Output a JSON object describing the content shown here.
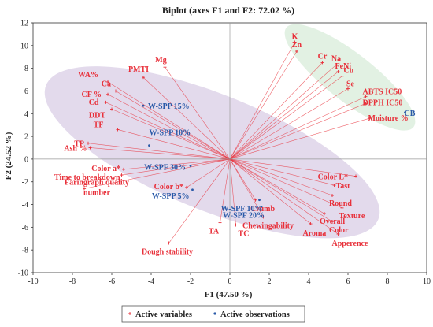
{
  "chart_data": {
    "type": "scatter",
    "title": "Biplot  (axes F1 and F2: 72.02 %)",
    "xlabel": "F1 (47.50 %)",
    "ylabel": "F2 (24.52 %)",
    "xlim": [
      -10,
      10
    ],
    "ylim": [
      -10,
      12
    ],
    "xticks": [
      -10,
      -8,
      -6,
      -4,
      -2,
      0,
      2,
      4,
      6,
      8,
      10
    ],
    "yticks": [
      -10,
      -8,
      -6,
      -4,
      -2,
      0,
      2,
      4,
      6,
      8,
      10,
      12
    ],
    "grid": false,
    "legend_position": "bottom",
    "colors": {
      "variables": "#e8303a",
      "observations": "#2a5aa8",
      "ellipse_purple_fill": "#d9cde6",
      "ellipse_green_fill": "#d8ecd9",
      "origin_lines": "#9a9a9a"
    },
    "series": [
      {
        "name": "Active variables",
        "points": [
          {
            "label": "K",
            "x": 3.3,
            "y": 10.3
          },
          {
            "label": "Zn",
            "x": 3.4,
            "y": 9.5
          },
          {
            "label": "Cr",
            "x": 4.7,
            "y": 8.5
          },
          {
            "label": "Na",
            "x": 5.4,
            "y": 8.3
          },
          {
            "label": "FeNi",
            "x": 5.5,
            "y": 7.7
          },
          {
            "label": "Cu",
            "x": 5.7,
            "y": 7.3
          },
          {
            "label": "Se",
            "x": 6.0,
            "y": 6.2
          },
          {
            "label": "ABTS IC50",
            "x": 6.9,
            "y": 5.5
          },
          {
            "label": "DPPH IC50",
            "x": 6.9,
            "y": 4.9
          },
          {
            "label": "Moisture %",
            "x": 7.1,
            "y": 3.6
          },
          {
            "label": "Mg",
            "x": -3.3,
            "y": 8.1
          },
          {
            "label": "PMTI",
            "x": -4.4,
            "y": 7.2
          },
          {
            "label": "WA%",
            "x": -6.2,
            "y": 6.8
          },
          {
            "label": "Ca",
            "x": -5.8,
            "y": 6.0
          },
          {
            "label": "CF %",
            "x": -6.2,
            "y": 5.7
          },
          {
            "label": "Cd",
            "x": -6.3,
            "y": 5.0
          },
          {
            "label": "DDT",
            "x": -6.0,
            "y": 4.4
          },
          {
            "label": "TF",
            "x": -5.7,
            "y": 2.6
          },
          {
            "label": "TP",
            "x": -7.2,
            "y": 1.4
          },
          {
            "label": "Ash %",
            "x": -7.1,
            "y": 1.0
          },
          {
            "label": "Color a*",
            "x": -5.4,
            "y": -0.9
          },
          {
            "label": "Time to breakdown",
            "x": -5.5,
            "y": -1.4
          },
          {
            "label": "Faringraph quality number",
            "x": -7.4,
            "y": -2.6
          },
          {
            "label": "Color b*",
            "x": -2.2,
            "y": -2.5
          },
          {
            "label": "Dough stability",
            "x": -3.1,
            "y": -7.4
          },
          {
            "label": "TA",
            "x": -0.5,
            "y": -5.6
          },
          {
            "label": "TC",
            "x": 0.3,
            "y": -5.8
          },
          {
            "label": "Crumb",
            "x": 1.3,
            "y": -3.6
          },
          {
            "label": "Chewingability",
            "x": 1.7,
            "y": -5.1
          },
          {
            "label": "Color L*",
            "x": 6.4,
            "y": -1.5
          },
          {
            "label": "Tast",
            "x": 5.3,
            "y": -2.3
          },
          {
            "label": "Round",
            "x": 5.2,
            "y": -3.2
          },
          {
            "label": "Texture",
            "x": 5.7,
            "y": -4.3
          },
          {
            "label": "Overall",
            "x": 4.8,
            "y": -4.8
          },
          {
            "label": "Color",
            "x": 5.2,
            "y": -5.5
          },
          {
            "label": "Aroma",
            "x": 4.1,
            "y": -5.7
          },
          {
            "label": "Apperence",
            "x": 5.5,
            "y": -6.6
          }
        ]
      },
      {
        "name": "Active observations",
        "points": [
          {
            "label": "W-SPP 15%",
            "x": -4.4,
            "y": 4.7
          },
          {
            "label": "W-SPP 10%",
            "x": -4.1,
            "y": 1.2
          },
          {
            "label": "W-SPF 30%",
            "x": -2.0,
            "y": -0.6
          },
          {
            "label": "W-SPP 5%",
            "x": -1.9,
            "y": -2.7
          },
          {
            "label": "W-SPF 10%",
            "x": 1.5,
            "y": -3.6
          },
          {
            "label": "W-SPF 20%",
            "x": 1.6,
            "y": -4.2
          },
          {
            "label": "CB",
            "x": 8.9,
            "y": 4.1
          }
        ]
      }
    ]
  }
}
